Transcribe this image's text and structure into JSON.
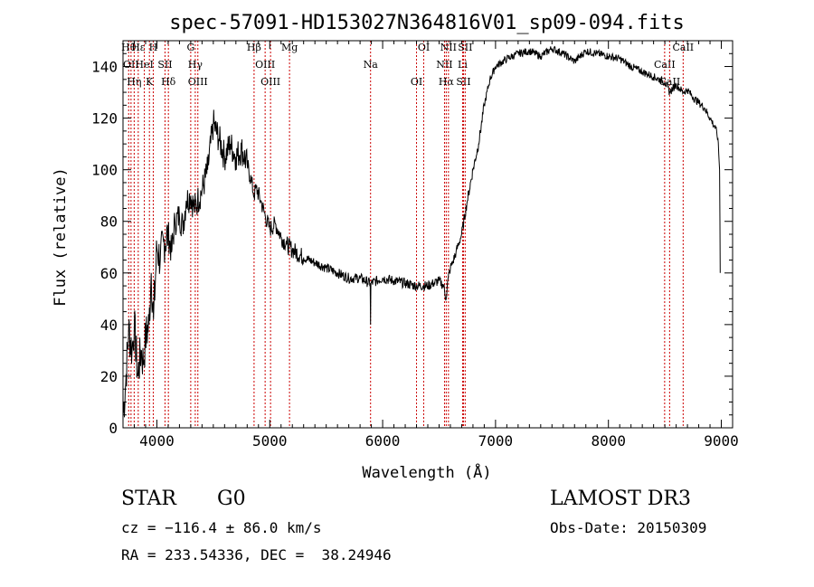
{
  "chart_data": {
    "type": "line",
    "title": "spec-57091-HD153027N364816V01_sp09-094.fits",
    "xlabel": "Wavelength (Å)",
    "ylabel": "Flux (relative)",
    "xlim": [
      3700,
      9100
    ],
    "ylim": [
      0,
      150
    ],
    "x_ticks": [
      4000,
      5000,
      6000,
      7000,
      8000,
      9000
    ],
    "y_ticks": [
      0,
      20,
      40,
      60,
      80,
      100,
      120,
      140
    ],
    "grid": false,
    "series": [
      {
        "x": [
          3700,
          3720,
          3750,
          3780,
          3800,
          3830,
          3860,
          3880,
          3900,
          3930,
          3950,
          3970,
          4000,
          4030,
          4060,
          4100,
          4130,
          4160,
          4200,
          4230,
          4260,
          4300,
          4330,
          4360,
          4400,
          4450,
          4500,
          4550,
          4600,
          4650,
          4700,
          4750,
          4800,
          4840,
          4861,
          4880,
          4920,
          4960,
          5000,
          5050,
          5100,
          5150,
          5200,
          5300,
          5400,
          5500,
          5600,
          5700,
          5800,
          5890,
          5893,
          5896,
          5950,
          6000,
          6100,
          6200,
          6300,
          6400,
          6450,
          6500,
          6540,
          6563,
          6580,
          6600,
          6620,
          6650,
          6700,
          6750,
          6800,
          6850,
          6900,
          6950,
          7000,
          7100,
          7200,
          7300,
          7400,
          7500,
          7600,
          7700,
          7800,
          7900,
          8000,
          8100,
          8200,
          8300,
          8400,
          8500,
          8542,
          8600,
          8662,
          8700,
          8750,
          8800,
          8850,
          8900,
          8950,
          8970,
          8985,
          8990
        ],
        "y": [
          5,
          15,
          38,
          30,
          40,
          20,
          30,
          25,
          35,
          40,
          60,
          42,
          70,
          65,
          72,
          75,
          68,
          80,
          82,
          78,
          88,
          90,
          85,
          88,
          92,
          100,
          118,
          112,
          105,
          110,
          105,
          108,
          102,
          95,
          90,
          93,
          88,
          82,
          77,
          79,
          74,
          71,
          69,
          66,
          64,
          62,
          60,
          58,
          58,
          56,
          40,
          56,
          57,
          58,
          57,
          56,
          55,
          55,
          56,
          57,
          55,
          50,
          58,
          62,
          64,
          68,
          75,
          88,
          100,
          110,
          125,
          135,
          140,
          143,
          145,
          146,
          144,
          147,
          145,
          142,
          146,
          145,
          144,
          143,
          140,
          138,
          136,
          134,
          130,
          133,
          130,
          131,
          128,
          126,
          124,
          120,
          116,
          112,
          100,
          60
        ]
      }
    ],
    "lines": [
      {
        "x": 3750,
        "label": "Hθ"
      },
      {
        "x": 3771,
        "label": "OII"
      },
      {
        "x": 3799,
        "label": "Hη"
      },
      {
        "x": 3835,
        "label": "Hε"
      },
      {
        "x": 3889,
        "label": "HeI"
      },
      {
        "x": 3934,
        "label": "K"
      },
      {
        "x": 3968,
        "label": "H"
      },
      {
        "x": 4072,
        "label": "SII"
      },
      {
        "x": 4102,
        "label": "Hδ"
      },
      {
        "x": 4300,
        "label": "G"
      },
      {
        "x": 4340,
        "label": "Hγ"
      },
      {
        "x": 4363,
        "label": "OIII"
      },
      {
        "x": 4861,
        "label": "Hβ"
      },
      {
        "x": 4959,
        "label": "OIII"
      },
      {
        "x": 5007,
        "label": "OIII"
      },
      {
        "x": 5175,
        "label": "Mg"
      },
      {
        "x": 5893,
        "label": "Na"
      },
      {
        "x": 6300,
        "label": "OI"
      },
      {
        "x": 6364,
        "label": "OI"
      },
      {
        "x": 6548,
        "label": "NII"
      },
      {
        "x": 6563,
        "label": "Hα"
      },
      {
        "x": 6583,
        "label": "NII"
      },
      {
        "x": 6708,
        "label": "Li"
      },
      {
        "x": 6716,
        "label": "SII"
      },
      {
        "x": 6731,
        "label": "SII"
      },
      {
        "x": 8498,
        "label": "CaII"
      },
      {
        "x": 8542,
        "label": "CaII"
      },
      {
        "x": 8662,
        "label": "CaII"
      }
    ]
  },
  "info": {
    "object_class": "STAR",
    "subclass": "G0",
    "survey": "LAMOST DR3",
    "cz": "cz = −116.4 ± 86.0 km/s",
    "obs_date": "Obs-Date: 20150309",
    "coords": "RA = 233.54336, DEC =  38.24946"
  }
}
